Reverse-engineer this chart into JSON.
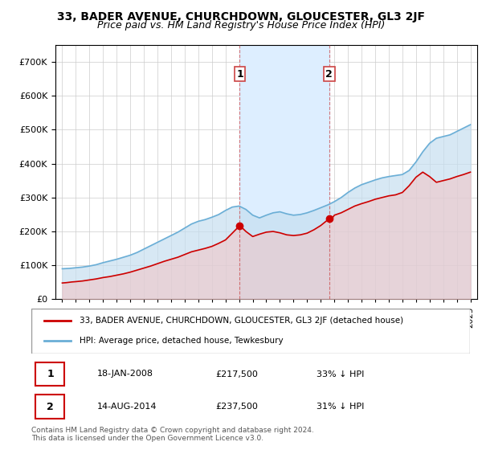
{
  "title": "33, BADER AVENUE, CHURCHDOWN, GLOUCESTER, GL3 2JF",
  "subtitle": "Price paid vs. HM Land Registry's House Price Index (HPI)",
  "legend_label_red": "33, BADER AVENUE, CHURCHDOWN, GLOUCESTER, GL3 2JF (detached house)",
  "legend_label_blue": "HPI: Average price, detached house, Tewkesbury",
  "annotation1_label": "1",
  "annotation1_date": "18-JAN-2008",
  "annotation1_price": "£217,500",
  "annotation1_hpi": "33% ↓ HPI",
  "annotation2_label": "2",
  "annotation2_date": "14-AUG-2014",
  "annotation2_price": "£237,500",
  "annotation2_hpi": "31% ↓ HPI",
  "footnote": "Contains HM Land Registry data © Crown copyright and database right 2024.\nThis data is licensed under the Open Government Licence v3.0.",
  "sale1_x": 2008.05,
  "sale1_y": 217500,
  "sale2_x": 2014.62,
  "sale2_y": 237500,
  "hpi_color": "#6aaed6",
  "hpi_fill_color": "#c6dff0",
  "sale_color": "#cc0000",
  "sale_fill_color": "#f5c0c0",
  "background_color": "#ffffff",
  "plot_bg_color": "#ffffff",
  "grid_color": "#cccccc",
  "highlight_fill": "#ddeeff",
  "ylim": [
    0,
    750000
  ],
  "xlim_start": 1994.5,
  "xlim_end": 2025.5,
  "hpi_years": [
    1995,
    1995.5,
    1996,
    1996.5,
    1997,
    1997.5,
    1998,
    1998.5,
    1999,
    1999.5,
    2000,
    2000.5,
    2001,
    2001.5,
    2002,
    2002.5,
    2003,
    2003.5,
    2004,
    2004.5,
    2005,
    2005.5,
    2006,
    2006.5,
    2007,
    2007.5,
    2008,
    2008.5,
    2009,
    2009.5,
    2010,
    2010.5,
    2011,
    2011.5,
    2012,
    2012.5,
    2013,
    2013.5,
    2014,
    2014.5,
    2015,
    2015.5,
    2016,
    2016.5,
    2017,
    2017.5,
    2018,
    2018.5,
    2019,
    2019.5,
    2020,
    2020.5,
    2021,
    2021.5,
    2022,
    2022.5,
    2023,
    2023.5,
    2024,
    2024.5,
    2025
  ],
  "hpi_values": [
    90000,
    91000,
    93000,
    95000,
    98000,
    102000,
    108000,
    113000,
    118000,
    124000,
    130000,
    138000,
    148000,
    158000,
    168000,
    178000,
    188000,
    198000,
    210000,
    222000,
    230000,
    235000,
    242000,
    250000,
    262000,
    272000,
    275000,
    265000,
    248000,
    240000,
    248000,
    255000,
    258000,
    252000,
    248000,
    250000,
    255000,
    262000,
    270000,
    278000,
    288000,
    300000,
    315000,
    328000,
    338000,
    345000,
    352000,
    358000,
    362000,
    365000,
    368000,
    380000,
    405000,
    435000,
    460000,
    475000,
    480000,
    485000,
    495000,
    505000,
    515000
  ],
  "sale_years": [
    1995,
    1995.3,
    1995.7,
    1996,
    1996.5,
    1997,
    1997.5,
    1998,
    1998.5,
    1999,
    1999.5,
    2000,
    2000.5,
    2001,
    2001.5,
    2002,
    2002.5,
    2003,
    2003.5,
    2004,
    2004.5,
    2005,
    2005.5,
    2006,
    2006.5,
    2007,
    2007.5,
    2008.05,
    2008.5,
    2009,
    2009.5,
    2010,
    2010.5,
    2011,
    2011.5,
    2012,
    2012.5,
    2013,
    2013.5,
    2014,
    2014.62,
    2014.9,
    2015,
    2015.5,
    2016,
    2016.5,
    2017,
    2017.5,
    2018,
    2018.5,
    2019,
    2019.5,
    2020,
    2020.5,
    2021,
    2021.5,
    2022,
    2022.5,
    2023,
    2023.5,
    2024,
    2024.5,
    2025
  ],
  "sale_values": [
    48000,
    49000,
    51000,
    52000,
    54000,
    57000,
    60000,
    64000,
    67000,
    71000,
    75000,
    80000,
    86000,
    92000,
    98000,
    105000,
    112000,
    118000,
    124000,
    132000,
    140000,
    145000,
    150000,
    156000,
    165000,
    175000,
    195000,
    217500,
    200000,
    185000,
    192000,
    198000,
    200000,
    196000,
    190000,
    188000,
    190000,
    195000,
    205000,
    217500,
    237500,
    242000,
    248000,
    255000,
    265000,
    275000,
    282000,
    288000,
    295000,
    300000,
    305000,
    308000,
    315000,
    335000,
    360000,
    375000,
    362000,
    345000,
    350000,
    355000,
    362000,
    368000,
    375000
  ]
}
